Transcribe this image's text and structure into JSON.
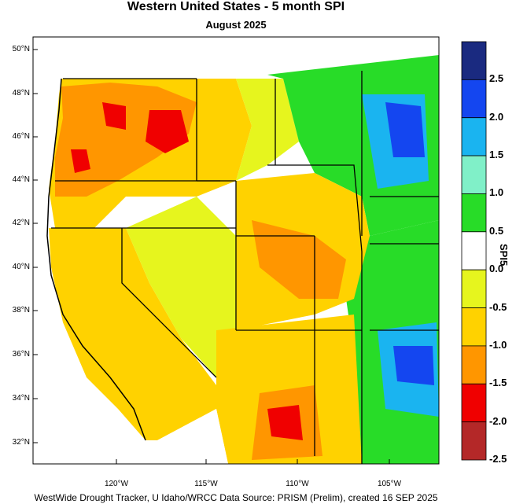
{
  "title": "Western United States - 5 month SPI",
  "subtitle": "August 2025",
  "credit": "WestWide Drought Tracker, U Idaho/WRCC Data Source: PRISM (Prelim), created 16 SEP 2025",
  "lat_labels": [
    "50°N",
    "48°N",
    "46°N",
    "44°N",
    "42°N",
    "40°N",
    "38°N",
    "36°N",
    "34°N",
    "32°N"
  ],
  "lon_labels": [
    "120°W",
    "115°W",
    "110°W",
    "105°W"
  ],
  "colorbar": {
    "title": "SPI5",
    "tick_labels": [
      "2.5",
      "2.0",
      "1.5",
      "1.0",
      "0.5",
      "0.0",
      "-0.5",
      "-1.0",
      "-1.5",
      "-2.0",
      "-2.5"
    ],
    "colors": [
      "#1a2a80",
      "#1446f0",
      "#1ab4f0",
      "#80f0c8",
      "#28dc28",
      "#ffffff",
      "#e6f51e",
      "#ffd200",
      "#ff9600",
      "#f00000",
      "#b42828"
    ]
  }
}
